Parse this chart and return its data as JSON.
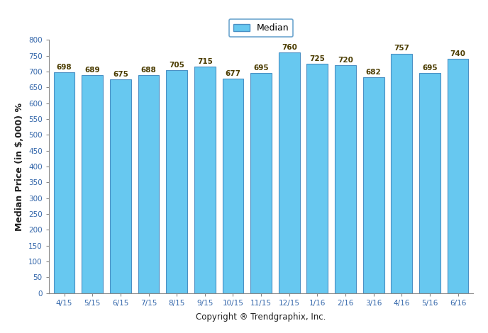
{
  "categories": [
    "4/15",
    "5/15",
    "6/15",
    "7/15",
    "8/15",
    "9/15",
    "10/15",
    "11/15",
    "12/15",
    "1/16",
    "2/16",
    "3/16",
    "4/16",
    "5/16",
    "6/16"
  ],
  "values": [
    698,
    689,
    675,
    688,
    705,
    715,
    677,
    695,
    760,
    725,
    720,
    682,
    757,
    695,
    740
  ],
  "bar_color": "#67C8F0",
  "bar_edge_color": "#4A90C4",
  "ylabel": "Median Price (in $,000) %",
  "xlabel": "Copyright ® Trendgraphix, Inc.",
  "ylim": [
    0,
    800
  ],
  "yticks": [
    0,
    50,
    100,
    150,
    200,
    250,
    300,
    350,
    400,
    450,
    500,
    550,
    600,
    650,
    700,
    750,
    800
  ],
  "legend_label": "Median",
  "legend_facecolor": "#67C8F0",
  "legend_edgecolor": "#4A90C4",
  "background_color": "#ffffff",
  "bar_width": 0.75,
  "annotation_fontsize": 7.5,
  "annotation_color": "#4B3C00",
  "ylabel_fontsize": 9,
  "xlabel_fontsize": 8.5,
  "tick_fontsize": 7.5,
  "tick_color": "#3366AA",
  "ytick_color": "#3366AA"
}
